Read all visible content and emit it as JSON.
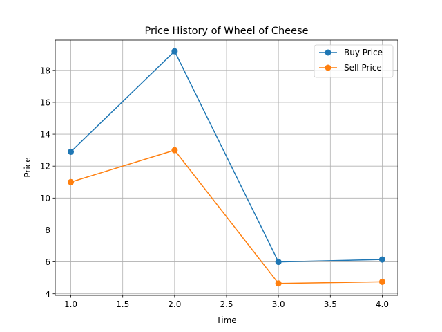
{
  "chart_data": {
    "type": "line",
    "title": "Price History of Wheel of Cheese",
    "xlabel": "Time",
    "ylabel": "Price",
    "x": [
      1.0,
      2.0,
      3.0,
      4.0
    ],
    "series": [
      {
        "name": "Buy Price",
        "color": "#1f77b4",
        "values": [
          12.9,
          19.2,
          6.0,
          6.15
        ]
      },
      {
        "name": "Sell Price",
        "color": "#ff7f0e",
        "values": [
          11.0,
          13.0,
          4.65,
          4.75
        ]
      }
    ],
    "xlim": [
      0.85,
      4.15
    ],
    "ylim": [
      3.9,
      19.9
    ],
    "xticks": [
      1.0,
      1.5,
      2.0,
      2.5,
      3.0,
      3.5,
      4.0
    ],
    "xtick_labels": [
      "1.0",
      "1.5",
      "2.0",
      "2.5",
      "3.0",
      "3.5",
      "4.0"
    ],
    "yticks": [
      4,
      6,
      8,
      10,
      12,
      14,
      16,
      18
    ],
    "ytick_labels": [
      "4",
      "6",
      "8",
      "10",
      "12",
      "14",
      "16",
      "18"
    ],
    "grid": true,
    "legend_position": "top-right"
  }
}
